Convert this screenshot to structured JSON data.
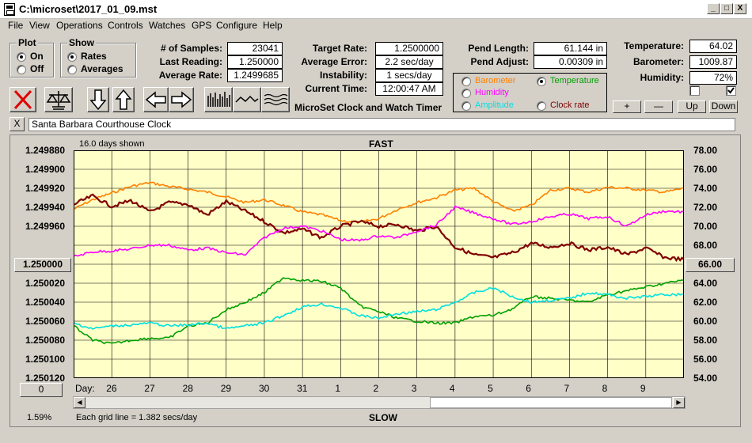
{
  "window": {
    "title": "C:\\microset\\2017_01_09.mst",
    "min": "_",
    "max": "□",
    "close": "X"
  },
  "menu": [
    "File",
    "View",
    "Operations",
    "Controls",
    "Watches",
    "GPS",
    "Configure",
    "Help"
  ],
  "plot_group": {
    "title": "Plot",
    "on": "On",
    "off": "Off",
    "selected": "On"
  },
  "show_group": {
    "title": "Show",
    "rates": "Rates",
    "averages": "Averages",
    "selected": "Rates"
  },
  "stats": {
    "samples_label": "# of Samples:",
    "samples": "23041",
    "last_label": "Last Reading:",
    "last": "1.250000",
    "avg_rate_label": "Average Rate:",
    "avg_rate": "1.2499685"
  },
  "rates": {
    "target_label": "Target Rate:",
    "target": "1.2500000",
    "avg_error_label": "Average Error:",
    "avg_error": "2.2 sec/day",
    "instability_label": "Instability:",
    "instability": "1 secs/day",
    "time_label": "Current Time:",
    "time": "12:00:47 AM"
  },
  "app_name": "MicroSet Clock and Watch Timer",
  "pendulum": {
    "length_label": "Pend Length:",
    "length": "61.144 in",
    "adjust_label": "Pend Adjust:",
    "adjust": "0.00309 in"
  },
  "overlay": {
    "barometer": "Barometer",
    "temperature": "Temperature",
    "humidity": "Humidity",
    "amplitude": "Amplitude",
    "clock_rate": "Clock rate",
    "selected": "Temperature"
  },
  "environment": {
    "temperature_label": "Temperature:",
    "temperature": "64.02",
    "barometer_label": "Barometer:",
    "barometer": "1009.87",
    "humidity_label": "Humidity:",
    "humidity": "72%"
  },
  "checkboxes": [
    false,
    true
  ],
  "small_buttons": [
    "+",
    "—",
    "Up",
    "Down"
  ],
  "toolbar": [
    "x-icon",
    "balance-icon",
    "arrow-down-icon",
    "arrow-up-icon",
    "arrow-left-icon",
    "arrow-right-icon",
    "bar-graph-icon",
    "wave-icon",
    "multi-wave-icon"
  ],
  "clock_name": "Santa Barbara Courthouse Clock",
  "close_field": "X",
  "plot": {
    "days_shown": "16.0 days shown",
    "top_label": "FAST",
    "bottom_label": "SLOW",
    "grid_note": "Each grid line = 1.382 secs/day",
    "day_prefix": "Day:",
    "left_readout": "1.250000",
    "right_readout": "66.00",
    "lower_left_button": "0",
    "percent": "1.59%"
  },
  "colors": {
    "plot_bg": "#ffffc8",
    "barometer": "#ff8000",
    "temperature": "#00a000",
    "humidity": "#ff00ff",
    "amplitude": "#00e0e0",
    "clock_rate": "#800000",
    "close_x": "#e00000"
  },
  "chart_data": {
    "type": "line",
    "title": "FAST",
    "xlabel": "Day:",
    "ylabel": "",
    "categories": [
      "26",
      "27",
      "28",
      "29",
      "30",
      "31",
      "1",
      "2",
      "3",
      "4",
      "5",
      "6",
      "7",
      "8",
      "9"
    ],
    "x_range": [
      25.0,
      41.0
    ],
    "y_left": {
      "ticks": [
        "1.249880",
        "1.249900",
        "1.249920",
        "1.249940",
        "1.249960",
        "1.250000",
        "1.250020",
        "1.250040",
        "1.250060",
        "1.250080",
        "1.250100",
        "1.250120"
      ],
      "range": [
        1.24988,
        1.25012
      ],
      "reversed": true
    },
    "y_right": {
      "ticks": [
        "78.00",
        "76.00",
        "74.00",
        "72.00",
        "70.00",
        "68.00",
        "66.00",
        "64.00",
        "62.00",
        "60.00",
        "58.00",
        "56.00",
        "54.00"
      ],
      "range": [
        54,
        78
      ]
    },
    "grid": true,
    "series": [
      {
        "name": "Barometer",
        "color": "#ff8000",
        "x": [
          25.0,
          25.5,
          26.0,
          26.5,
          27.0,
          27.5,
          28.0,
          28.5,
          29.0,
          29.5,
          30.0,
          30.5,
          31.0,
          31.5,
          32.0,
          32.5,
          33.0,
          33.5,
          34.0,
          34.5,
          35.0,
          35.5,
          36.0,
          36.5,
          37.0,
          37.5,
          38.0,
          38.5,
          39.0,
          39.5,
          40.0,
          40.5,
          41.0
        ],
        "y": [
          71.8,
          72.8,
          73.5,
          74.2,
          74.6,
          74.2,
          73.9,
          73.6,
          73.1,
          72.5,
          72.8,
          72.2,
          71.5,
          71.2,
          70.6,
          70.4,
          70.8,
          71.8,
          72.5,
          73.0,
          73.8,
          74.0,
          72.6,
          71.6,
          72.2,
          73.8,
          74.0,
          73.6,
          74.1,
          74.0,
          73.8,
          73.6,
          74.0
        ]
      },
      {
        "name": "Clock rate",
        "color": "#800000",
        "x": [
          25.0,
          25.5,
          26.0,
          26.5,
          27.0,
          27.5,
          28.0,
          28.5,
          29.0,
          29.5,
          30.0,
          30.5,
          31.0,
          31.5,
          32.0,
          32.5,
          33.0,
          33.5,
          34.0,
          34.5,
          35.0,
          35.5,
          36.0,
          36.5,
          37.0,
          37.5,
          38.0,
          38.5,
          39.0,
          39.5,
          40.0,
          40.5,
          41.0
        ],
        "y": [
          1.249937,
          1.249928,
          1.249939,
          1.249933,
          1.249945,
          1.249935,
          1.249937,
          1.249948,
          1.249934,
          1.249944,
          1.249955,
          1.249967,
          1.249963,
          1.249972,
          1.24996,
          1.249955,
          1.24996,
          1.249958,
          1.249965,
          1.24996,
          1.249982,
          1.24999,
          1.249993,
          1.249988,
          1.249978,
          1.249982,
          1.249978,
          1.249985,
          1.249982,
          1.24999,
          1.249983,
          1.249993,
          1.249995
        ]
      },
      {
        "name": "Humidity",
        "color": "#ff00ff",
        "x": [
          25.0,
          25.5,
          26.0,
          26.5,
          27.0,
          27.5,
          28.0,
          28.5,
          29.0,
          29.5,
          30.0,
          30.5,
          31.0,
          31.5,
          32.0,
          32.5,
          33.0,
          33.5,
          34.0,
          34.5,
          35.0,
          35.5,
          36.0,
          36.5,
          37.0,
          37.5,
          38.0,
          38.5,
          39.0,
          39.5,
          40.0,
          40.5,
          41.0
        ],
        "y": [
          66.8,
          67.3,
          67.4,
          67.6,
          68.0,
          68.0,
          67.5,
          67.7,
          67.2,
          67.0,
          68.8,
          69.8,
          70.0,
          69.5,
          68.6,
          68.5,
          69.0,
          68.8,
          69.5,
          70.1,
          72.0,
          71.4,
          70.8,
          70.2,
          70.5,
          71.0,
          71.3,
          70.8,
          71.0,
          70.0,
          71.2,
          71.6,
          71.5
        ]
      },
      {
        "name": "Temperature",
        "color": "#00a000",
        "x": [
          25.0,
          25.5,
          26.0,
          26.5,
          27.0,
          27.5,
          28.0,
          28.5,
          29.0,
          29.5,
          30.0,
          30.5,
          31.0,
          31.5,
          32.0,
          32.5,
          33.0,
          33.5,
          34.0,
          34.5,
          35.0,
          35.5,
          36.0,
          36.5,
          37.0,
          37.5,
          38.0,
          38.5,
          39.0,
          39.5,
          40.0,
          40.5,
          41.0
        ],
        "y": [
          59.5,
          58.0,
          57.6,
          58.0,
          58.2,
          58.2,
          59.5,
          59.8,
          61.2,
          62.0,
          63.0,
          64.6,
          64.3,
          64.2,
          63.5,
          61.6,
          61.0,
          60.3,
          60.0,
          59.8,
          59.8,
          60.5,
          60.6,
          61.3,
          62.6,
          62.4,
          62.2,
          62.0,
          62.8,
          63.2,
          63.6,
          64.0,
          64.3
        ]
      },
      {
        "name": "Amplitude",
        "color": "#00e0e0",
        "x": [
          25.0,
          25.5,
          26.0,
          26.5,
          27.0,
          27.5,
          28.0,
          28.5,
          29.0,
          29.5,
          30.0,
          30.5,
          31.0,
          31.5,
          32.0,
          32.5,
          33.0,
          33.5,
          34.0,
          34.5,
          35.0,
          35.5,
          36.0,
          36.5,
          37.0,
          37.5,
          38.0,
          38.5,
          39.0,
          39.5,
          40.0,
          40.5,
          41.0
        ],
        "y": [
          59.8,
          59.2,
          59.5,
          59.6,
          59.8,
          59.5,
          59.6,
          59.8,
          59.2,
          59.5,
          59.8,
          60.6,
          61.5,
          61.8,
          61.4,
          60.6,
          60.3,
          60.8,
          61.0,
          61.2,
          62.0,
          63.0,
          63.5,
          62.6,
          62.0,
          62.2,
          62.4,
          63.0,
          62.8,
          62.4,
          62.6,
          62.8,
          62.8
        ]
      }
    ]
  }
}
